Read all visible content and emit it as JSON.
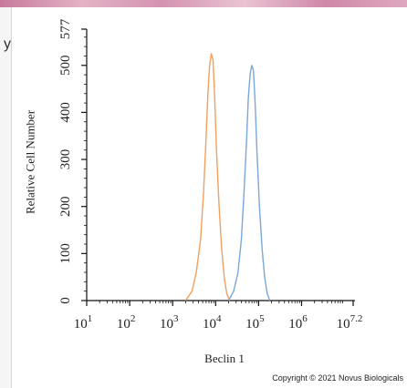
{
  "chart_data": {
    "type": "line",
    "xlabel": "Beclin 1",
    "ylabel": "Relative Cell Number",
    "x_scale": "log",
    "xlim": [
      1,
      7.2
    ],
    "ylim": [
      0,
      577
    ],
    "x_ticks": [
      {
        "value": 1,
        "base": "10",
        "exp": "1"
      },
      {
        "value": 2,
        "base": "10",
        "exp": "2"
      },
      {
        "value": 3,
        "base": "10",
        "exp": "3"
      },
      {
        "value": 4,
        "base": "10",
        "exp": "4"
      },
      {
        "value": 5,
        "base": "10",
        "exp": "5"
      },
      {
        "value": 6,
        "base": "10",
        "exp": "6"
      },
      {
        "value": 7.2,
        "base": "10",
        "exp": "7.2"
      }
    ],
    "y_ticks": [
      0,
      100,
      200,
      300,
      400,
      500,
      577
    ],
    "grid": false,
    "legend": "none",
    "series": [
      {
        "color": "#f0a060",
        "x": [
          3.3,
          3.45,
          3.55,
          3.65,
          3.72,
          3.78,
          3.82,
          3.86,
          3.9,
          3.94,
          3.98,
          4.02,
          4.08,
          4.14,
          4.2,
          4.26,
          4.32
        ],
        "y": [
          0,
          20,
          60,
          130,
          230,
          350,
          440,
          500,
          525,
          510,
          430,
          320,
          200,
          110,
          50,
          15,
          0
        ]
      },
      {
        "color": "#7aa8d8",
        "x": [
          4.3,
          4.42,
          4.52,
          4.6,
          4.66,
          4.72,
          4.76,
          4.8,
          4.84,
          4.88,
          4.92,
          4.96,
          5.02,
          5.08,
          5.14,
          5.2,
          5.26
        ],
        "y": [
          0,
          20,
          60,
          130,
          230,
          340,
          430,
          480,
          500,
          490,
          420,
          320,
          200,
          110,
          50,
          15,
          0
        ]
      }
    ]
  },
  "copyright": "Copyright © 2021 Novus Biologicals",
  "left_glyph": "y"
}
